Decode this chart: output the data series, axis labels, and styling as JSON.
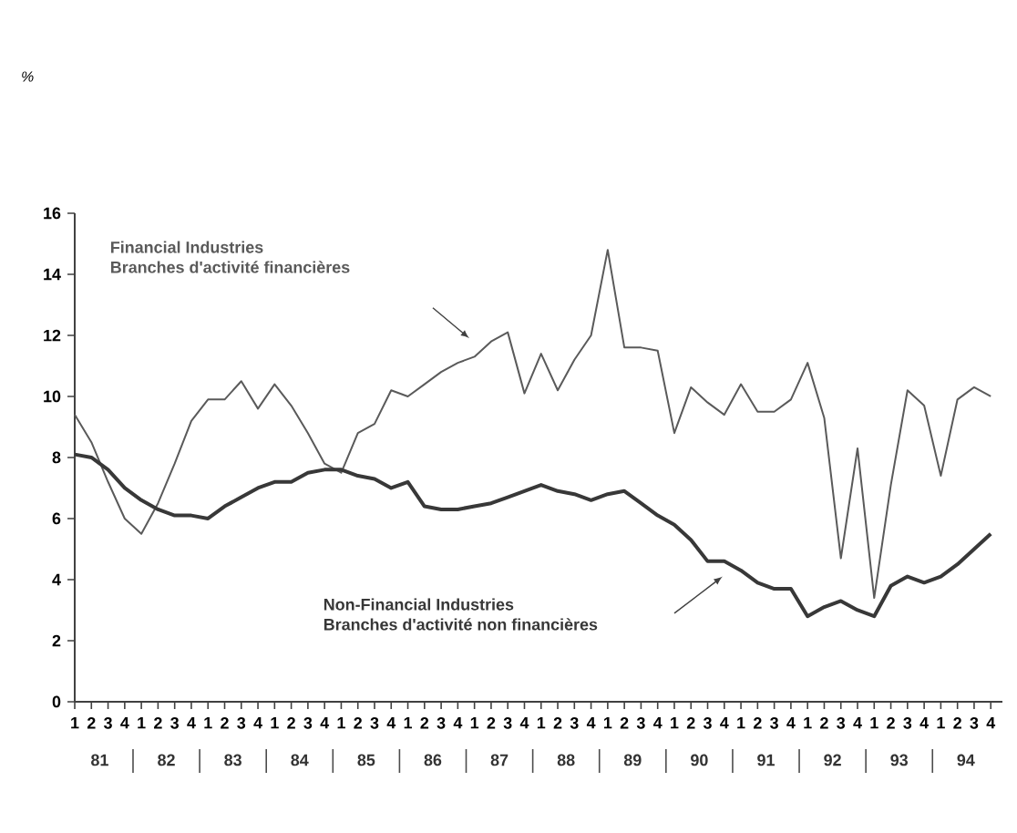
{
  "chart_data": {
    "type": "line",
    "categories": [
      "1",
      "2",
      "3",
      "4",
      "1",
      "2",
      "3",
      "4",
      "1",
      "2",
      "3",
      "4",
      "1",
      "2",
      "3",
      "4",
      "1",
      "2",
      "3",
      "4",
      "1",
      "2",
      "3",
      "4",
      "1",
      "2",
      "3",
      "4",
      "1",
      "2",
      "3",
      "4",
      "1",
      "2",
      "3",
      "4",
      "1",
      "2",
      "3",
      "4",
      "1",
      "2",
      "3",
      "4",
      "1",
      "2",
      "3",
      "4",
      "1",
      "2",
      "3",
      "4",
      "1",
      "2",
      "3",
      "4"
    ],
    "series": [
      {
        "name": "Financial Industries",
        "color": "#5a5a5a",
        "values": [
          9.4,
          8.5,
          7.2,
          6.0,
          5.5,
          6.5,
          7.8,
          9.2,
          9.9,
          9.9,
          10.5,
          9.6,
          10.4,
          9.7,
          8.8,
          7.8,
          7.5,
          8.8,
          9.1,
          10.2,
          10.0,
          10.4,
          10.8,
          11.1,
          11.3,
          11.8,
          12.1,
          10.1,
          11.4,
          10.2,
          11.2,
          12.0,
          14.8,
          11.6,
          11.6,
          11.5,
          8.8,
          10.3,
          9.8,
          9.4,
          10.4,
          9.5,
          9.5,
          9.9,
          11.1,
          9.3,
          4.7,
          8.3,
          3.4,
          7.1,
          10.2,
          9.7,
          7.4,
          9.9,
          10.3,
          10.0
        ]
      },
      {
        "name": "Non-Financial Industries",
        "color": "#383838",
        "values": [
          8.1,
          8.0,
          7.6,
          7.0,
          6.6,
          6.3,
          6.1,
          6.1,
          6.0,
          6.4,
          6.7,
          7.0,
          7.2,
          7.2,
          7.5,
          7.6,
          7.6,
          7.4,
          7.3,
          7.0,
          7.2,
          6.4,
          6.3,
          6.3,
          6.4,
          6.5,
          6.7,
          6.9,
          7.1,
          6.9,
          6.8,
          6.6,
          6.8,
          6.9,
          6.5,
          6.1,
          5.8,
          5.3,
          4.6,
          4.6,
          4.3,
          3.9,
          3.7,
          3.7,
          2.8,
          3.1,
          3.3,
          3.0,
          2.8,
          3.8,
          4.1,
          3.9,
          4.1,
          4.5,
          5.0,
          5.5
        ]
      }
    ],
    "annotations": [
      "Branches d'activité financières",
      "Branches d'activité non financières",
      "%",
      "81",
      "82",
      "83",
      "84",
      "85",
      "86",
      "87",
      "88",
      "89",
      "90",
      "91",
      "92",
      "93",
      "94"
    ],
    "ylim": [
      0,
      16
    ],
    "yticks": [
      0,
      2,
      4,
      6,
      8,
      10,
      12,
      14,
      16
    ]
  }
}
